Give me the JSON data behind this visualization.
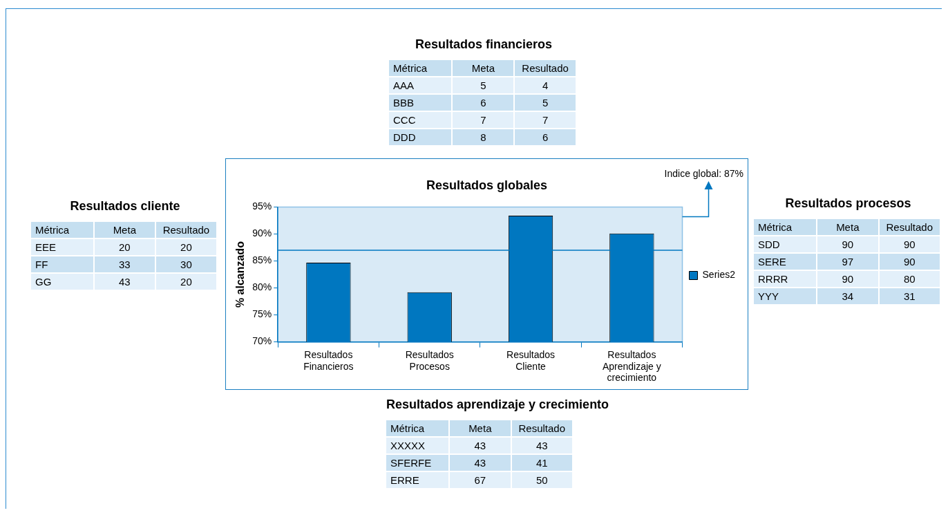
{
  "chart_data": [
    {
      "type": "heatmap",
      "title": "Resultados financieros",
      "ylabel": "Métrica",
      "categories": [
        "Meta",
        "Resultado"
      ],
      "y_categories": [
        "AAA",
        "BBB",
        "CCC",
        "DDD"
      ],
      "cells": [
        [
          5,
          4
        ],
        [
          6,
          5
        ],
        [
          7,
          7
        ],
        [
          8,
          6
        ]
      ],
      "data_labels": true
    },
    {
      "type": "heatmap",
      "title": "Resultados cliente",
      "ylabel": "Métrica",
      "categories": [
        "Meta",
        "Resultado"
      ],
      "y_categories": [
        "EEE",
        "FF",
        "GG"
      ],
      "cells": [
        [
          20,
          20
        ],
        [
          33,
          30
        ],
        [
          43,
          20
        ]
      ],
      "data_labels": true
    },
    {
      "type": "bar",
      "title": "Resultados globales",
      "ylabel": "% alcanzado",
      "categories": [
        "Resultados Financieros",
        "Resultados Procesos",
        "Resultados Cliente",
        "Resultados Aprendizaje y crecimiento"
      ],
      "series": [
        {
          "name": "Series2",
          "color": "#0077c0",
          "values": [
            84.7,
            79.2,
            93.4,
            90.1
          ]
        }
      ],
      "ylim": [
        70,
        95
      ],
      "yticks": [
        {
          "value": 70,
          "label": "70%"
        },
        {
          "value": 75,
          "label": "75%"
        },
        {
          "value": 80,
          "label": "80%"
        },
        {
          "value": 85,
          "label": "85%"
        },
        {
          "value": 90,
          "label": "90%"
        },
        {
          "value": 95,
          "label": "95%"
        }
      ],
      "ref_lines": [
        {
          "axis": "y",
          "value": 87,
          "color": "#0077c0"
        }
      ],
      "annotations": [
        "Indice global: 87%"
      ],
      "grid": false,
      "legend": "right"
    },
    {
      "type": "heatmap",
      "title": "Resultados procesos",
      "ylabel": "Métrica",
      "categories": [
        "Meta",
        "Resultado"
      ],
      "y_categories": [
        "SDD",
        "SERE",
        "RRRR",
        "YYY"
      ],
      "cells": [
        [
          90,
          90
        ],
        [
          97,
          90
        ],
        [
          90,
          80
        ],
        [
          34,
          31
        ]
      ],
      "data_labels": true
    },
    {
      "type": "heatmap",
      "title": "Resultados aprendizaje y crecimiento",
      "ylabel": "Métrica",
      "categories": [
        "Meta",
        "Resultado"
      ],
      "y_categories": [
        "XXXXX",
        "SFERFE",
        "ERRE"
      ],
      "cells": [
        [
          43,
          43
        ],
        [
          43,
          41
        ],
        [
          67,
          50
        ]
      ],
      "data_labels": true
    }
  ]
}
